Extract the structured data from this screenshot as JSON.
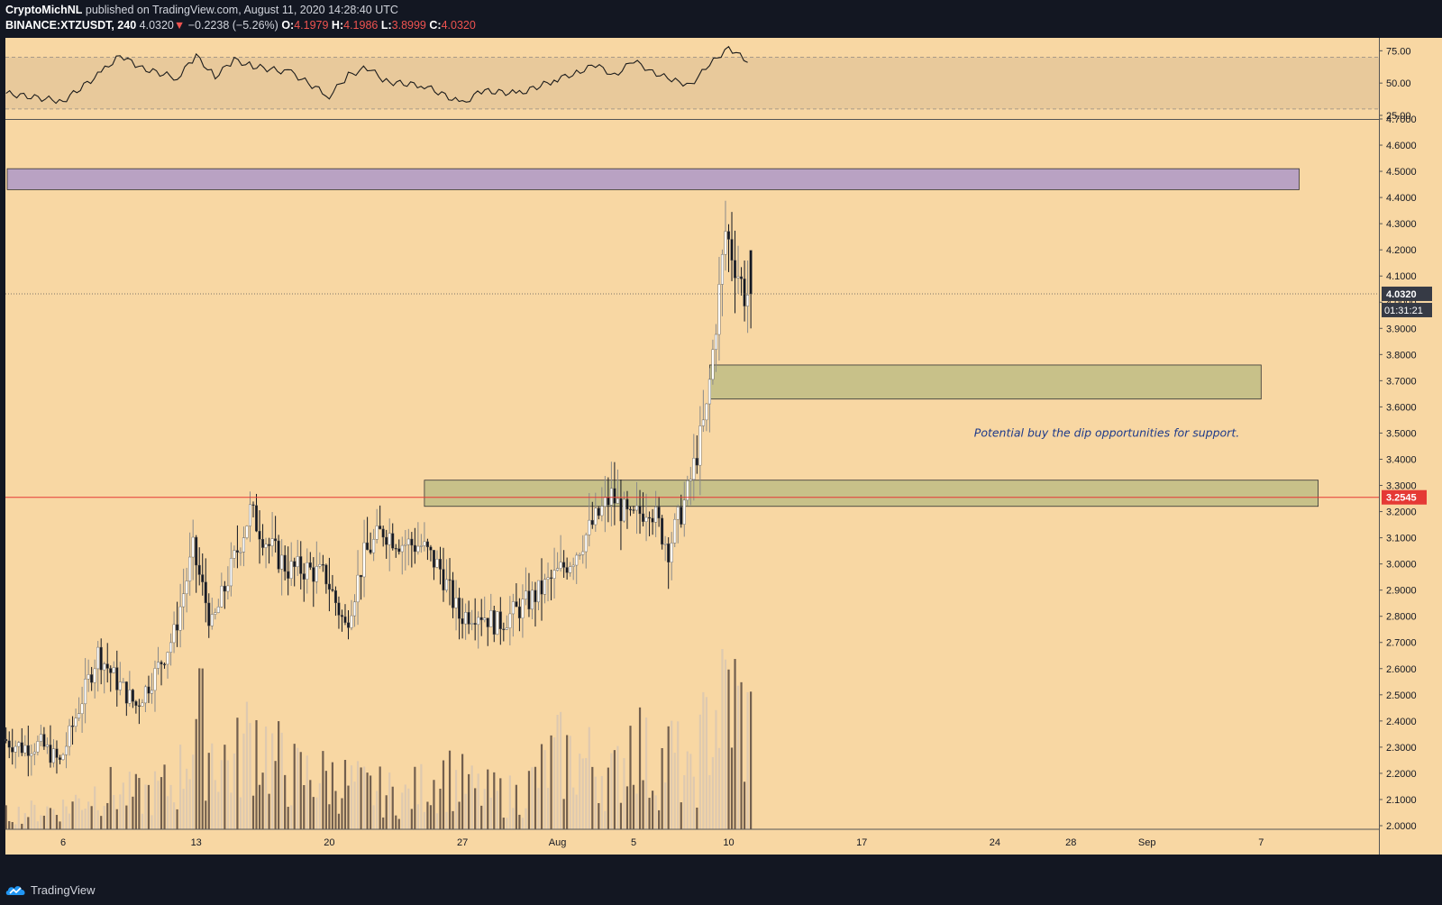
{
  "header": {
    "author": "CryptoMichNL",
    "published_text": " published on TradingView.com, August 11, 2020 14:28:40 UTC",
    "symbol": "BINANCE:XTZUSDT, 240",
    "last": "4.0320",
    "change": "−0.2238 (−5.26%)",
    "o_label": "O:",
    "o": "4.1979",
    "h_label": "H:",
    "h": "4.1986",
    "l_label": "L:",
    "l": "3.8999",
    "c_label": "C:",
    "c": "4.0320"
  },
  "footer": {
    "brand": "TradingView"
  },
  "colors": {
    "background": "#f8d7a3",
    "rsi_band": "#e8c99b",
    "resistance_zone": "#b9a2c3",
    "support_zone": "#c8c189",
    "price_line": "#e53935",
    "bull": "#ffffff",
    "bear": "#131722"
  },
  "chart_data": [
    {
      "type": "line",
      "name": "RSI",
      "y_ticks": [
        "75.00",
        "50.00",
        "25.00"
      ],
      "band": [
        30,
        70
      ],
      "ylim": [
        25,
        85
      ],
      "x_time": [
        "2020-07-03",
        "2020-07-06",
        "2020-07-08",
        "2020-07-09",
        "2020-07-10",
        "2020-07-12",
        "2020-07-13",
        "2020-07-14",
        "2020-07-15",
        "2020-07-16",
        "2020-07-18",
        "2020-07-20",
        "2020-07-21",
        "2020-07-22",
        "2020-07-23",
        "2020-07-25",
        "2020-07-27",
        "2020-07-28",
        "2020-07-30",
        "2020-08-01",
        "2020-08-02",
        "2020-08-03",
        "2020-08-04",
        "2020-08-05",
        "2020-08-06",
        "2020-08-07",
        "2020-08-08",
        "2020-08-09",
        "2020-08-10",
        "2020-08-11"
      ],
      "values": [
        42,
        36,
        58,
        72,
        62,
        54,
        71,
        55,
        68,
        63,
        58,
        40,
        56,
        62,
        51,
        48,
        34,
        44,
        42,
        53,
        58,
        64,
        56,
        67,
        59,
        52,
        49,
        64,
        78,
        66
      ]
    },
    {
      "type": "candlestick",
      "symbol": "BINANCE:XTZUSDT",
      "interval": "240",
      "y_ticks": [
        "4.7000",
        "4.6000",
        "4.5000",
        "4.4000",
        "4.3000",
        "4.2000",
        "4.1000",
        "4.0000",
        "3.9000",
        "3.8000",
        "3.7000",
        "3.6000",
        "3.5000",
        "3.4000",
        "3.3000",
        "3.2000",
        "3.1000",
        "3.0000",
        "2.9000",
        "2.8000",
        "2.7000",
        "2.6000",
        "2.5000",
        "2.4000",
        "2.3000",
        "2.2000",
        "2.1000",
        "2.0000"
      ],
      "ylim": [
        2.0,
        4.7
      ],
      "x_tick_labels": [
        "6",
        "13",
        "20",
        "27",
        "Aug",
        "5",
        "10",
        "17",
        "24",
        "28",
        "Sep",
        "7"
      ],
      "x_tick_dates": [
        "2020-07-06",
        "2020-07-13",
        "2020-07-20",
        "2020-07-27",
        "2020-08-01",
        "2020-08-05",
        "2020-08-10",
        "2020-08-17",
        "2020-08-24",
        "2020-08-28",
        "2020-09-01",
        "2020-09-07"
      ],
      "last_price_label": "4.0320",
      "countdown": "01:31:21",
      "horizontal_line": {
        "price": 3.2545,
        "label": "3.2545"
      },
      "zones": [
        {
          "kind": "resistance",
          "from": 4.43,
          "to": 4.51,
          "start": "2020-07-03",
          "end": "2020-09-09"
        },
        {
          "kind": "support",
          "from": 3.63,
          "to": 3.76,
          "start": "2020-08-09",
          "end": "2020-09-07"
        },
        {
          "kind": "support",
          "from": 3.22,
          "to": 3.32,
          "start": "2020-07-25",
          "end": "2020-09-10"
        }
      ],
      "annotation": "Potential buy the dip opportunities for support.",
      "close_path": {
        "x_time": [
          "2020-07-03",
          "2020-07-04",
          "2020-07-05",
          "2020-07-06",
          "2020-07-07",
          "2020-07-08",
          "2020-07-09",
          "2020-07-10",
          "2020-07-11",
          "2020-07-12",
          "2020-07-13",
          "2020-07-14",
          "2020-07-15",
          "2020-07-16",
          "2020-07-17",
          "2020-07-18",
          "2020-07-19",
          "2020-07-20",
          "2020-07-21",
          "2020-07-22",
          "2020-07-23",
          "2020-07-24",
          "2020-07-25",
          "2020-07-26",
          "2020-07-27",
          "2020-07-28",
          "2020-07-29",
          "2020-07-30",
          "2020-07-31",
          "2020-08-01",
          "2020-08-02",
          "2020-08-03",
          "2020-08-04",
          "2020-08-05",
          "2020-08-06",
          "2020-08-07",
          "2020-08-08",
          "2020-08-09",
          "2020-08-10",
          "2020-08-11"
        ],
        "close": [
          2.33,
          2.3,
          2.31,
          2.24,
          2.45,
          2.66,
          2.55,
          2.46,
          2.58,
          2.73,
          3.05,
          2.76,
          2.98,
          3.2,
          3.07,
          2.98,
          2.98,
          2.95,
          2.76,
          3.03,
          3.13,
          3.08,
          3.07,
          2.98,
          2.8,
          2.82,
          2.77,
          2.82,
          2.88,
          2.95,
          3.03,
          3.15,
          3.26,
          3.16,
          3.23,
          3.06,
          3.27,
          3.58,
          4.27,
          4.032
        ]
      }
    },
    {
      "type": "bar",
      "name": "Volume",
      "x_time": [
        "2020-07-03",
        "2020-07-06",
        "2020-07-08",
        "2020-07-10",
        "2020-07-12",
        "2020-07-13",
        "2020-07-14",
        "2020-07-15",
        "2020-07-16",
        "2020-07-17",
        "2020-07-18",
        "2020-07-20",
        "2020-07-22",
        "2020-07-24",
        "2020-07-26",
        "2020-07-28",
        "2020-07-30",
        "2020-08-01",
        "2020-08-03",
        "2020-08-04",
        "2020-08-05",
        "2020-08-06",
        "2020-08-07",
        "2020-08-08",
        "2020-08-09",
        "2020-08-10",
        "2020-08-11"
      ],
      "values": [
        8,
        12,
        22,
        18,
        25,
        60,
        42,
        35,
        55,
        40,
        30,
        28,
        22,
        18,
        30,
        20,
        18,
        40,
        36,
        28,
        55,
        30,
        42,
        25,
        60,
        75,
        55
      ]
    }
  ]
}
